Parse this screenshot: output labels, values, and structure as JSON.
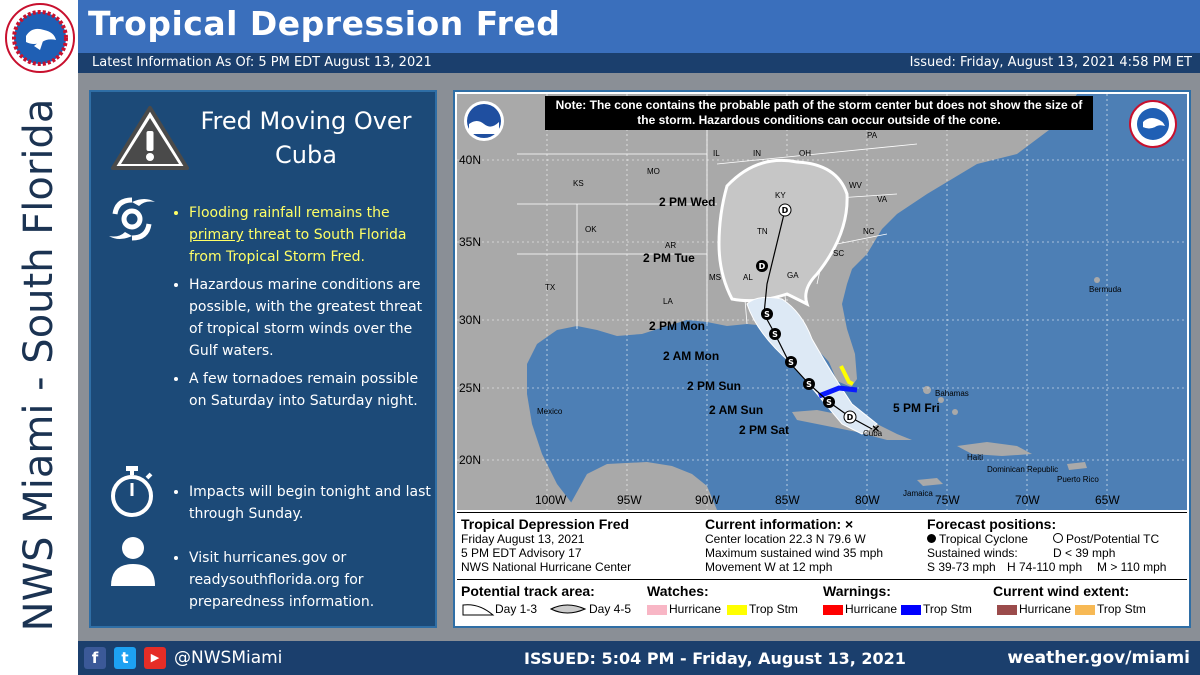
{
  "page": {
    "title": "Tropical Depression Fred",
    "latest_info": "Latest Information As Of:  5 PM EDT August 13, 2021",
    "issued_top": "Issued:  Friday, August 13, 2021  4:58 PM ET",
    "vertical_label": "NWS Miami - South Florida"
  },
  "left_panel": {
    "headline": "Fred Moving Over Cuba",
    "bullets_hurricane": [
      {
        "before": "Flooding rainfall remains the ",
        "emph": "primary",
        "after": " threat to South Florida from Tropical Storm Fred."
      },
      {
        "text": "Hazardous marine conditions are possible, with the greatest threat of tropical storm winds over the Gulf waters."
      },
      {
        "text": "A few tornadoes remain possible on Saturday into Saturday night."
      }
    ],
    "bullet_timer": "Impacts will begin tonight and last through Sunday.",
    "bullet_person": "Visit hurricanes.gov or readysouthflorida.org for preparedness information.",
    "icons": [
      "warning-icon",
      "hurricane-icon",
      "stopwatch-icon",
      "person-icon"
    ],
    "highlight_color": "#ffff66"
  },
  "map": {
    "note": "Note: The cone contains the probable path of the storm center but does not show the size of the storm. Hazardous conditions can occur outside of the cone.",
    "lat_labels": [
      "40N",
      "35N",
      "30N",
      "25N",
      "20N"
    ],
    "lon_labels": [
      "100W",
      "95W",
      "90W",
      "85W",
      "80W",
      "75W",
      "70W",
      "65W"
    ],
    "state_labels": [
      "KS",
      "MO",
      "OK",
      "AR",
      "TX",
      "MS",
      "AL",
      "GA",
      "SC",
      "NC",
      "TN",
      "VA",
      "WV",
      "KY",
      "IN",
      "OH",
      "IL",
      "PA",
      "LA"
    ],
    "place_labels": [
      "Bermuda",
      "Mexico",
      "Bahamas",
      "Cuba",
      "Jamaica",
      "Haiti",
      "Dominican Republic",
      "Puerto Rico"
    ],
    "track_points": [
      {
        "label": "5 PM Fri",
        "marker": "D"
      },
      {
        "label": "2 PM Sat",
        "marker": "S"
      },
      {
        "label": "2 AM Sun",
        "marker": "S"
      },
      {
        "label": "2 PM Sun",
        "marker": "S"
      },
      {
        "label": "2 AM Mon",
        "marker": "S"
      },
      {
        "label": "2 PM Mon",
        "marker": "S"
      },
      {
        "label": "2 PM Tue",
        "marker": "D"
      },
      {
        "label": "2 PM Wed",
        "marker": "D"
      }
    ],
    "colors": {
      "land": "#a9a9a9",
      "water": "#4d7fb5",
      "cone_fill": "#dde9f5",
      "trop_storm_warning": "#0a1aff",
      "trop_storm_watch": "#ffff00"
    }
  },
  "legend": {
    "storm_name": "Tropical Depression Fred",
    "date": "Friday August 13, 2021",
    "advisory": "5 PM EDT Advisory 17",
    "center": "NWS National Hurricane Center",
    "current_title": "Current information:",
    "current_symbol": "×",
    "current_lines": [
      "Center location 22.3 N 79.6 W",
      "Maximum sustained wind 35 mph",
      "Movement W at 12 mph"
    ],
    "forecast_title": "Forecast positions:",
    "forecast_tc": "Tropical Cyclone",
    "forecast_post": "Post/Potential TC",
    "sustained_winds": "Sustained winds:",
    "d_label": "D < 39 mph",
    "s_label": "S 39-73 mph",
    "h_label": "H 74-110 mph",
    "m_label": "M > 110 mph",
    "track_area": "Potential track area:",
    "day13": "Day 1-3",
    "day45": "Day 4-5",
    "watches": "Watches:",
    "warnings": "Warnings:",
    "wind_extent": "Current wind extent:",
    "hurricane": "Hurricane",
    "trop_stm": "Trop Stm",
    "swatch_colors": {
      "watch_hurricane": "#f8b6c5",
      "watch_trop": "#ffff00",
      "warn_hurricane": "#ff0000",
      "warn_trop": "#0000ff",
      "extent_hurricane": "#9b4b4b",
      "extent_trop": "#f7b955"
    }
  },
  "footer": {
    "handle": "@NWSMiami",
    "issued": "ISSUED: 5:04 PM - Friday, August 13, 2021",
    "url": "weather.gov/miami",
    "social_icons": [
      "facebook-icon",
      "twitter-icon",
      "youtube-icon"
    ]
  }
}
